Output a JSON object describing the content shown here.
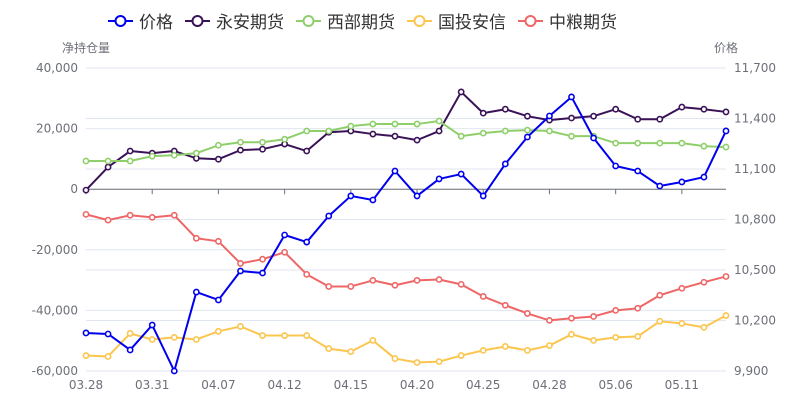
{
  "chart_data": {
    "type": "line",
    "title": "",
    "legend_position": "top",
    "grid": true,
    "y_left": {
      "name": "净持仓量",
      "ticks": [
        "40,000",
        "20,000",
        "0",
        "-20,000",
        "-40,000",
        "-60,000"
      ],
      "range": [
        -60000,
        40000
      ]
    },
    "y_right": {
      "name": "价格",
      "ticks": [
        "11,700",
        "11,400",
        "11,100",
        "10,800",
        "10,500",
        "10,200",
        "9,900"
      ],
      "range": [
        9900,
        11700
      ]
    },
    "x_labels": [
      "03.28",
      "",
      "",
      "03.31",
      "",
      "",
      "04.07",
      "",
      "",
      "04.12",
      "",
      "",
      "04.15",
      "",
      "",
      "04.20",
      "",
      "",
      "04.25",
      "",
      "",
      "04.28",
      "",
      "",
      "05.06",
      "",
      "",
      "05.11",
      "",
      ""
    ],
    "series": [
      {
        "name": "价格",
        "axis": "right",
        "color": "#0000ee",
        "values": [
          10126,
          10120,
          10025,
          10173,
          9900,
          10369,
          10322,
          10494,
          10482,
          10708,
          10666,
          10821,
          10940,
          10916,
          11088,
          10940,
          11041,
          11070,
          10940,
          11130,
          11290,
          11415,
          11528,
          11284,
          11118,
          11088,
          10999,
          11023,
          11052,
          11326
        ]
      },
      {
        "name": "永安期货",
        "axis": "left",
        "color": "#3a1257",
        "values": [
          -300,
          7300,
          12600,
          11900,
          12600,
          10200,
          9900,
          12900,
          13200,
          14900,
          12600,
          18800,
          19200,
          18200,
          17500,
          16200,
          19200,
          32100,
          25100,
          26400,
          24100,
          22800,
          23500,
          24100,
          26400,
          23100,
          23100,
          27100,
          26400,
          25500
        ]
      },
      {
        "name": "西部期货",
        "axis": "left",
        "color": "#8fcf6b",
        "values": [
          9300,
          9300,
          9300,
          10900,
          11200,
          11900,
          14500,
          15500,
          15500,
          16500,
          19200,
          19200,
          20800,
          21500,
          21500,
          21500,
          22500,
          17500,
          18500,
          19200,
          19500,
          19200,
          17500,
          17500,
          15200,
          15200,
          15200,
          15200,
          14200,
          13900
        ]
      },
      {
        "name": "国投安信",
        "axis": "left",
        "color": "#fcc54e",
        "values": [
          -54900,
          -55200,
          -47600,
          -49600,
          -48900,
          -49600,
          -46900,
          -45300,
          -48300,
          -48300,
          -48300,
          -52600,
          -53600,
          -49900,
          -55900,
          -57200,
          -56900,
          -54900,
          -53200,
          -51900,
          -53200,
          -51600,
          -47900,
          -49900,
          -48900,
          -48600,
          -43600,
          -44300,
          -45600,
          -41700
        ]
      },
      {
        "name": "中粮期货",
        "axis": "left",
        "color": "#ee6666",
        "values": [
          -8300,
          -10200,
          -8600,
          -9300,
          -8600,
          -16200,
          -17200,
          -24500,
          -23100,
          -20800,
          -28100,
          -32100,
          -32100,
          -30100,
          -31700,
          -30100,
          -29800,
          -31400,
          -35400,
          -38300,
          -41000,
          -43300,
          -42600,
          -42000,
          -40000,
          -39300,
          -35000,
          -32700,
          -30700,
          -28800
        ]
      }
    ]
  }
}
